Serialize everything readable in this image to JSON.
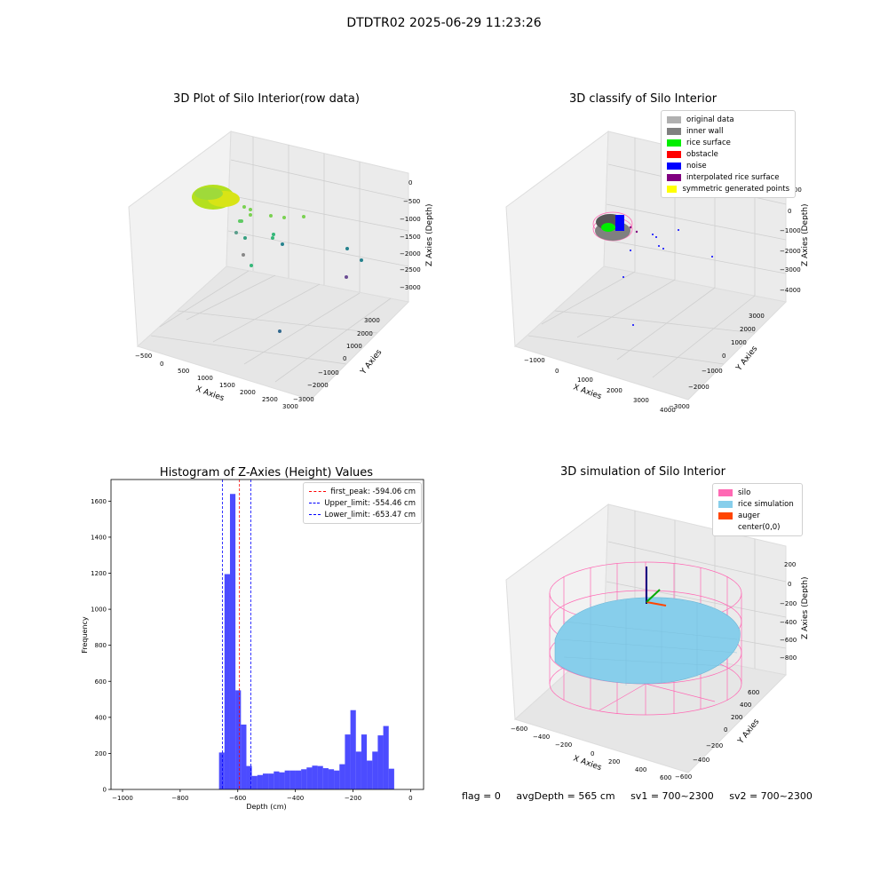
{
  "suptitle": "DTDTR02 2025-06-29 11:23:26",
  "panel1": {
    "title": "3D Plot of Silo Interior(row data)",
    "xlabel": "X Axies",
    "ylabel": "Y Axies",
    "zlabel": "Z Axies (Depth)",
    "xticks": [
      "-500",
      "0",
      "500",
      "1000",
      "1500",
      "2000",
      "2500",
      "3000"
    ],
    "yticks": [
      "-3000",
      "-2000",
      "-1000",
      "0",
      "1000",
      "2000",
      "3000"
    ],
    "zticks": [
      "0",
      "-500",
      "-1000",
      "-1500",
      "-2000",
      "-2500",
      "-3000"
    ]
  },
  "panel2": {
    "title": "3D classify of Silo Interior",
    "xlabel": "X Axies",
    "ylabel": "Y Axies",
    "zlabel": "Z Axies (Depth)",
    "xticks": [
      "-1000",
      "0",
      "1000",
      "2000",
      "3000",
      "4000"
    ],
    "yticks": [
      "-3000",
      "-2000",
      "-1000",
      "0",
      "1000",
      "2000",
      "3000"
    ],
    "zticks": [
      "1000",
      "0",
      "-1000",
      "-2000",
      "-3000",
      "-4000"
    ],
    "legend": [
      {
        "label": "original data",
        "color": "#b0b0b0"
      },
      {
        "label": "inner wall",
        "color": "#808080"
      },
      {
        "label": "rice surface",
        "color": "#00ee00"
      },
      {
        "label": "obstacle",
        "color": "#ff0000"
      },
      {
        "label": "noise",
        "color": "#0000ff"
      },
      {
        "label": "interpolated rice surface",
        "color": "#800080"
      },
      {
        "label": "symmetric generated points",
        "color": "#ffff00"
      }
    ]
  },
  "panel3": {
    "legend": [
      {
        "label": "first_peak: -594.06 cm",
        "color": "#ff0000"
      },
      {
        "label": "Upper_limit: -554.46 cm",
        "color": "#0000ff"
      },
      {
        "label": "Lower_limit: -653.47 cm",
        "color": "#0000ff"
      }
    ]
  },
  "panel4": {
    "title": "3D simulation of Silo Interior",
    "xlabel": "X Axies",
    "ylabel": "Y Axies",
    "zlabel": "Z Axies (Depth)",
    "xticks": [
      "-600",
      "-400",
      "-200",
      "0",
      "200",
      "400",
      "600"
    ],
    "yticks": [
      "-600",
      "-400",
      "-200",
      "0",
      "200",
      "400",
      "600"
    ],
    "zticks": [
      "200",
      "0",
      "-200",
      "-400",
      "-600",
      "-800"
    ],
    "legend": [
      {
        "label": "silo",
        "color": "#ff69b4"
      },
      {
        "label": "rice simulation",
        "color": "#87ceeb"
      },
      {
        "label": "auger",
        "color": "#ff4500"
      },
      {
        "label": "center(0,0)",
        "color": "#ffffff"
      }
    ]
  },
  "footer": {
    "flag": "flag = 0",
    "avg": "avgDepth = 565 cm",
    "sv1": "sv1 = 700~2300",
    "sv2": "sv2 = 700~2300"
  },
  "chart_data": [
    {
      "type": "scatter",
      "title": "3D Plot of Silo Interior(row data)",
      "xlabel": "X Axies",
      "ylabel": "Y Axies",
      "zlabel": "Z Axies (Depth)",
      "xlim": [
        -600,
        3100
      ],
      "ylim": [
        -3000,
        3000
      ],
      "zlim": [
        -3300,
        200
      ]
    },
    {
      "type": "scatter",
      "title": "3D classify of Silo Interior",
      "xlabel": "X Axies",
      "ylabel": "Y Axies",
      "zlabel": "Z Axies (Depth)",
      "xlim": [
        -1500,
        4200
      ],
      "ylim": [
        -3000,
        3000
      ],
      "zlim": [
        -4300,
        1200
      ],
      "series": [
        {
          "name": "original data"
        },
        {
          "name": "inner wall"
        },
        {
          "name": "rice surface"
        },
        {
          "name": "obstacle"
        },
        {
          "name": "noise"
        },
        {
          "name": "interpolated rice surface"
        },
        {
          "name": "symmetric generated points"
        }
      ]
    },
    {
      "type": "bar",
      "title": "Histogram of Z-Axies (Height) Values",
      "xlabel": "Depth (cm)",
      "ylabel": "Frequency",
      "xlim": [
        -1040,
        45
      ],
      "ylim": [
        0,
        1720
      ],
      "xticks": [
        -1000,
        -800,
        -600,
        -400,
        -200,
        0
      ],
      "yticks": [
        0,
        200,
        400,
        600,
        800,
        1000,
        1200,
        1400,
        1600
      ],
      "bin_width": 19,
      "bins_start": [
        -665,
        -646,
        -627,
        -608,
        -589,
        -570,
        -551,
        -532,
        -513,
        -494,
        -475,
        -456,
        -437,
        -418,
        -399,
        -380,
        -361,
        -342,
        -323,
        -304,
        -285,
        -266,
        -247,
        -228,
        -209,
        -190,
        -171,
        -152,
        -133,
        -114,
        -95,
        -76,
        -57,
        -38,
        -19
      ],
      "values": [
        205,
        1195,
        1640,
        550,
        360,
        130,
        75,
        80,
        88,
        88,
        100,
        95,
        105,
        105,
        105,
        112,
        122,
        132,
        130,
        118,
        112,
        105,
        140,
        305,
        440,
        210,
        305,
        160,
        210,
        300,
        352,
        115,
        0,
        0,
        0
      ],
      "vlines": [
        {
          "label": "first_peak: -594.06 cm",
          "x": -594.06,
          "color": "#ff0000"
        },
        {
          "label": "Upper_limit: -554.46 cm",
          "x": -554.46,
          "color": "#0000ff"
        },
        {
          "label": "Lower_limit: -653.47 cm",
          "x": -653.47,
          "color": "#0000ff"
        }
      ]
    },
    {
      "type": "scatter",
      "title": "3D simulation of Silo Interior",
      "xlabel": "X Axies",
      "ylabel": "Y Axies",
      "zlabel": "Z Axies (Depth)",
      "xlim": [
        -700,
        700
      ],
      "ylim": [
        -700,
        700
      ],
      "zlim": [
        -900,
        300
      ],
      "series": [
        {
          "name": "silo"
        },
        {
          "name": "rice simulation"
        },
        {
          "name": "auger"
        },
        {
          "name": "center(0,0)"
        }
      ]
    }
  ]
}
